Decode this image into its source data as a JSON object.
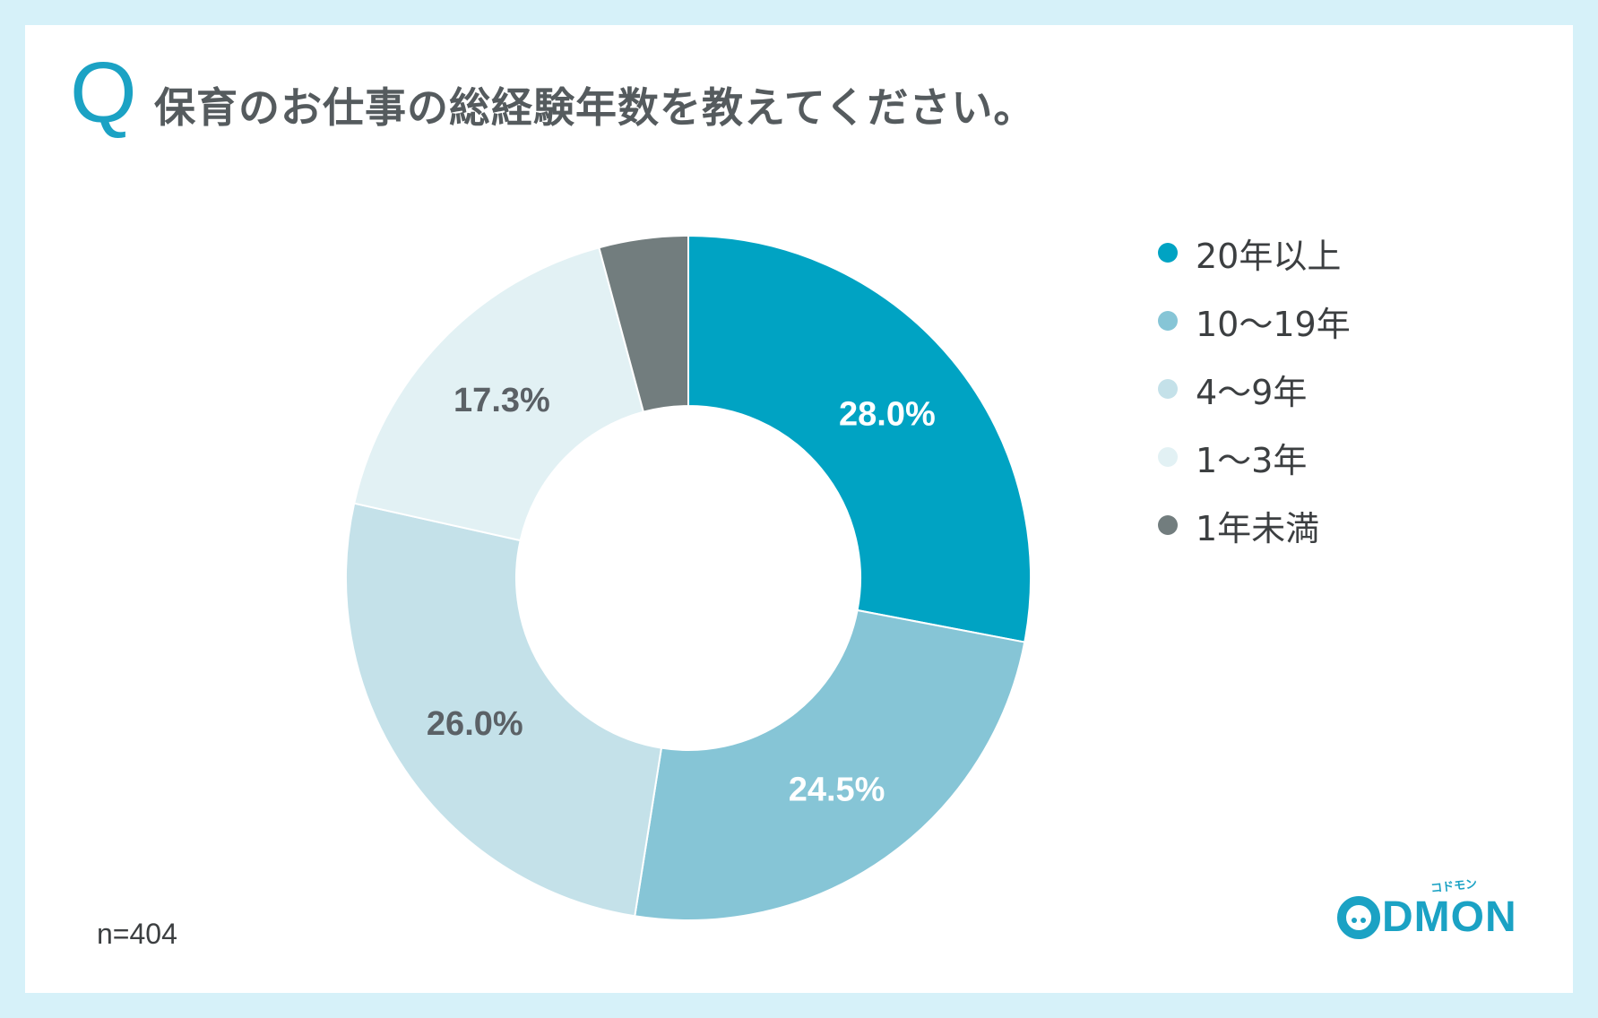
{
  "header": {
    "q_mark": "Q",
    "question": "保育のお仕事の総経験年数を教えてください。"
  },
  "chart_data": {
    "type": "pie",
    "donut": true,
    "categories": [
      "20年以上",
      "10〜19年",
      "4〜9年",
      "1〜3年",
      "1年未満"
    ],
    "values": [
      28.0,
      24.5,
      26.0,
      17.3,
      4.2
    ],
    "data_labels": [
      "28.0%",
      "24.5%",
      "26.0%",
      "17.3%",
      ""
    ],
    "colors": [
      "#00a3c3",
      "#86c5d6",
      "#c4e1e9",
      "#e2f1f4",
      "#727d7e"
    ],
    "label_colors": [
      "#ffffff",
      "#ffffff",
      "#5b6166",
      "#5b6166",
      "#ffffff"
    ],
    "legend_position": "right",
    "start_angle_deg": 0,
    "clockwise": true
  },
  "footer": {
    "sample_size": "n=404",
    "logo_text": "DMON",
    "logo_tagline": "コドモン"
  }
}
